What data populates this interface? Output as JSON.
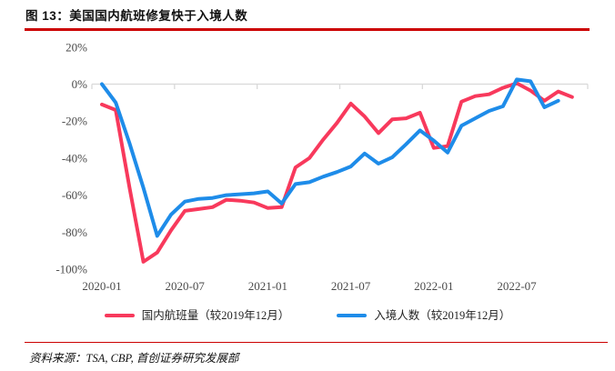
{
  "report": {
    "title": "图 13：美国国内航班修复快于入境人数",
    "source": "资料来源：TSA, CBP, 首创证券研究发展部"
  },
  "colors": {
    "domestic_flights": "#F8395C",
    "inbound_arrivals": "#1E8CE9",
    "rule_red": "#CC0000",
    "axis_line": "#D9D9D9",
    "axis_text": "#4A4A4A"
  },
  "chart_data": {
    "type": "line",
    "title": "美国国内航班修复快于入境人数",
    "x": [
      "2020-01",
      "2020-02",
      "2020-03",
      "2020-04",
      "2020-05",
      "2020-06",
      "2020-07",
      "2020-08",
      "2020-09",
      "2020-10",
      "2020-11",
      "2020-12",
      "2021-01",
      "2021-02",
      "2021-03",
      "2021-04",
      "2021-05",
      "2021-06",
      "2021-07",
      "2021-08",
      "2021-09",
      "2021-10",
      "2021-11",
      "2021-12",
      "2022-01",
      "2022-02",
      "2022-03",
      "2022-04",
      "2022-05",
      "2022-06",
      "2022-07",
      "2022-08",
      "2022-09",
      "2022-10",
      "2022-11"
    ],
    "series": [
      {
        "id": "domestic_flights",
        "name": "国内航班量（较2019年12月）",
        "color_key": "domestic_flights",
        "values": [
          -11,
          -14,
          -56,
          -96,
          -91,
          -79,
          -68.5,
          -67.5,
          -66.5,
          -62.5,
          -63,
          -64,
          -67,
          -66.5,
          -45,
          -40,
          -30,
          -21,
          -10.5,
          -17.5,
          -26.5,
          -19,
          -18.5,
          -15.5,
          -34.5,
          -33.5,
          -9.5,
          -6.5,
          -5.5,
          -2,
          0.5,
          -3.5,
          -9,
          -4,
          -7
        ]
      },
      {
        "id": "inbound_arrivals",
        "name": "入境人数（较2019年12月）",
        "color_key": "inbound_arrivals",
        "values": [
          0,
          -10,
          -32,
          -56,
          -82,
          -70.5,
          -63.5,
          -62,
          -61.5,
          -60,
          -59.5,
          -59,
          -58,
          -64.5,
          -54,
          -53,
          -50,
          -47.5,
          -44.5,
          -37.5,
          -43,
          -39.5,
          -32.5,
          -25,
          -30.5,
          -37,
          -22.5,
          -18.5,
          -14.5,
          -12,
          2.5,
          1.5,
          -12.5,
          -9,
          null
        ]
      }
    ],
    "unit": "%",
    "ylim": [
      -100,
      20
    ],
    "ytick_values": [
      20,
      0,
      -20,
      -40,
      -60,
      -80,
      -100
    ],
    "ytick_labels": [
      "20%",
      "0%",
      "-20%",
      "-40%",
      "-60%",
      "-80%",
      "-100%"
    ],
    "xtick_indices": [
      0,
      6,
      12,
      18,
      24,
      30
    ],
    "xtick_labels": [
      "2020-01",
      "2020-07",
      "2021-01",
      "2021-07",
      "2022-01",
      "2022-07"
    ],
    "grid": "zero-line-only",
    "legend_position": "bottom"
  }
}
